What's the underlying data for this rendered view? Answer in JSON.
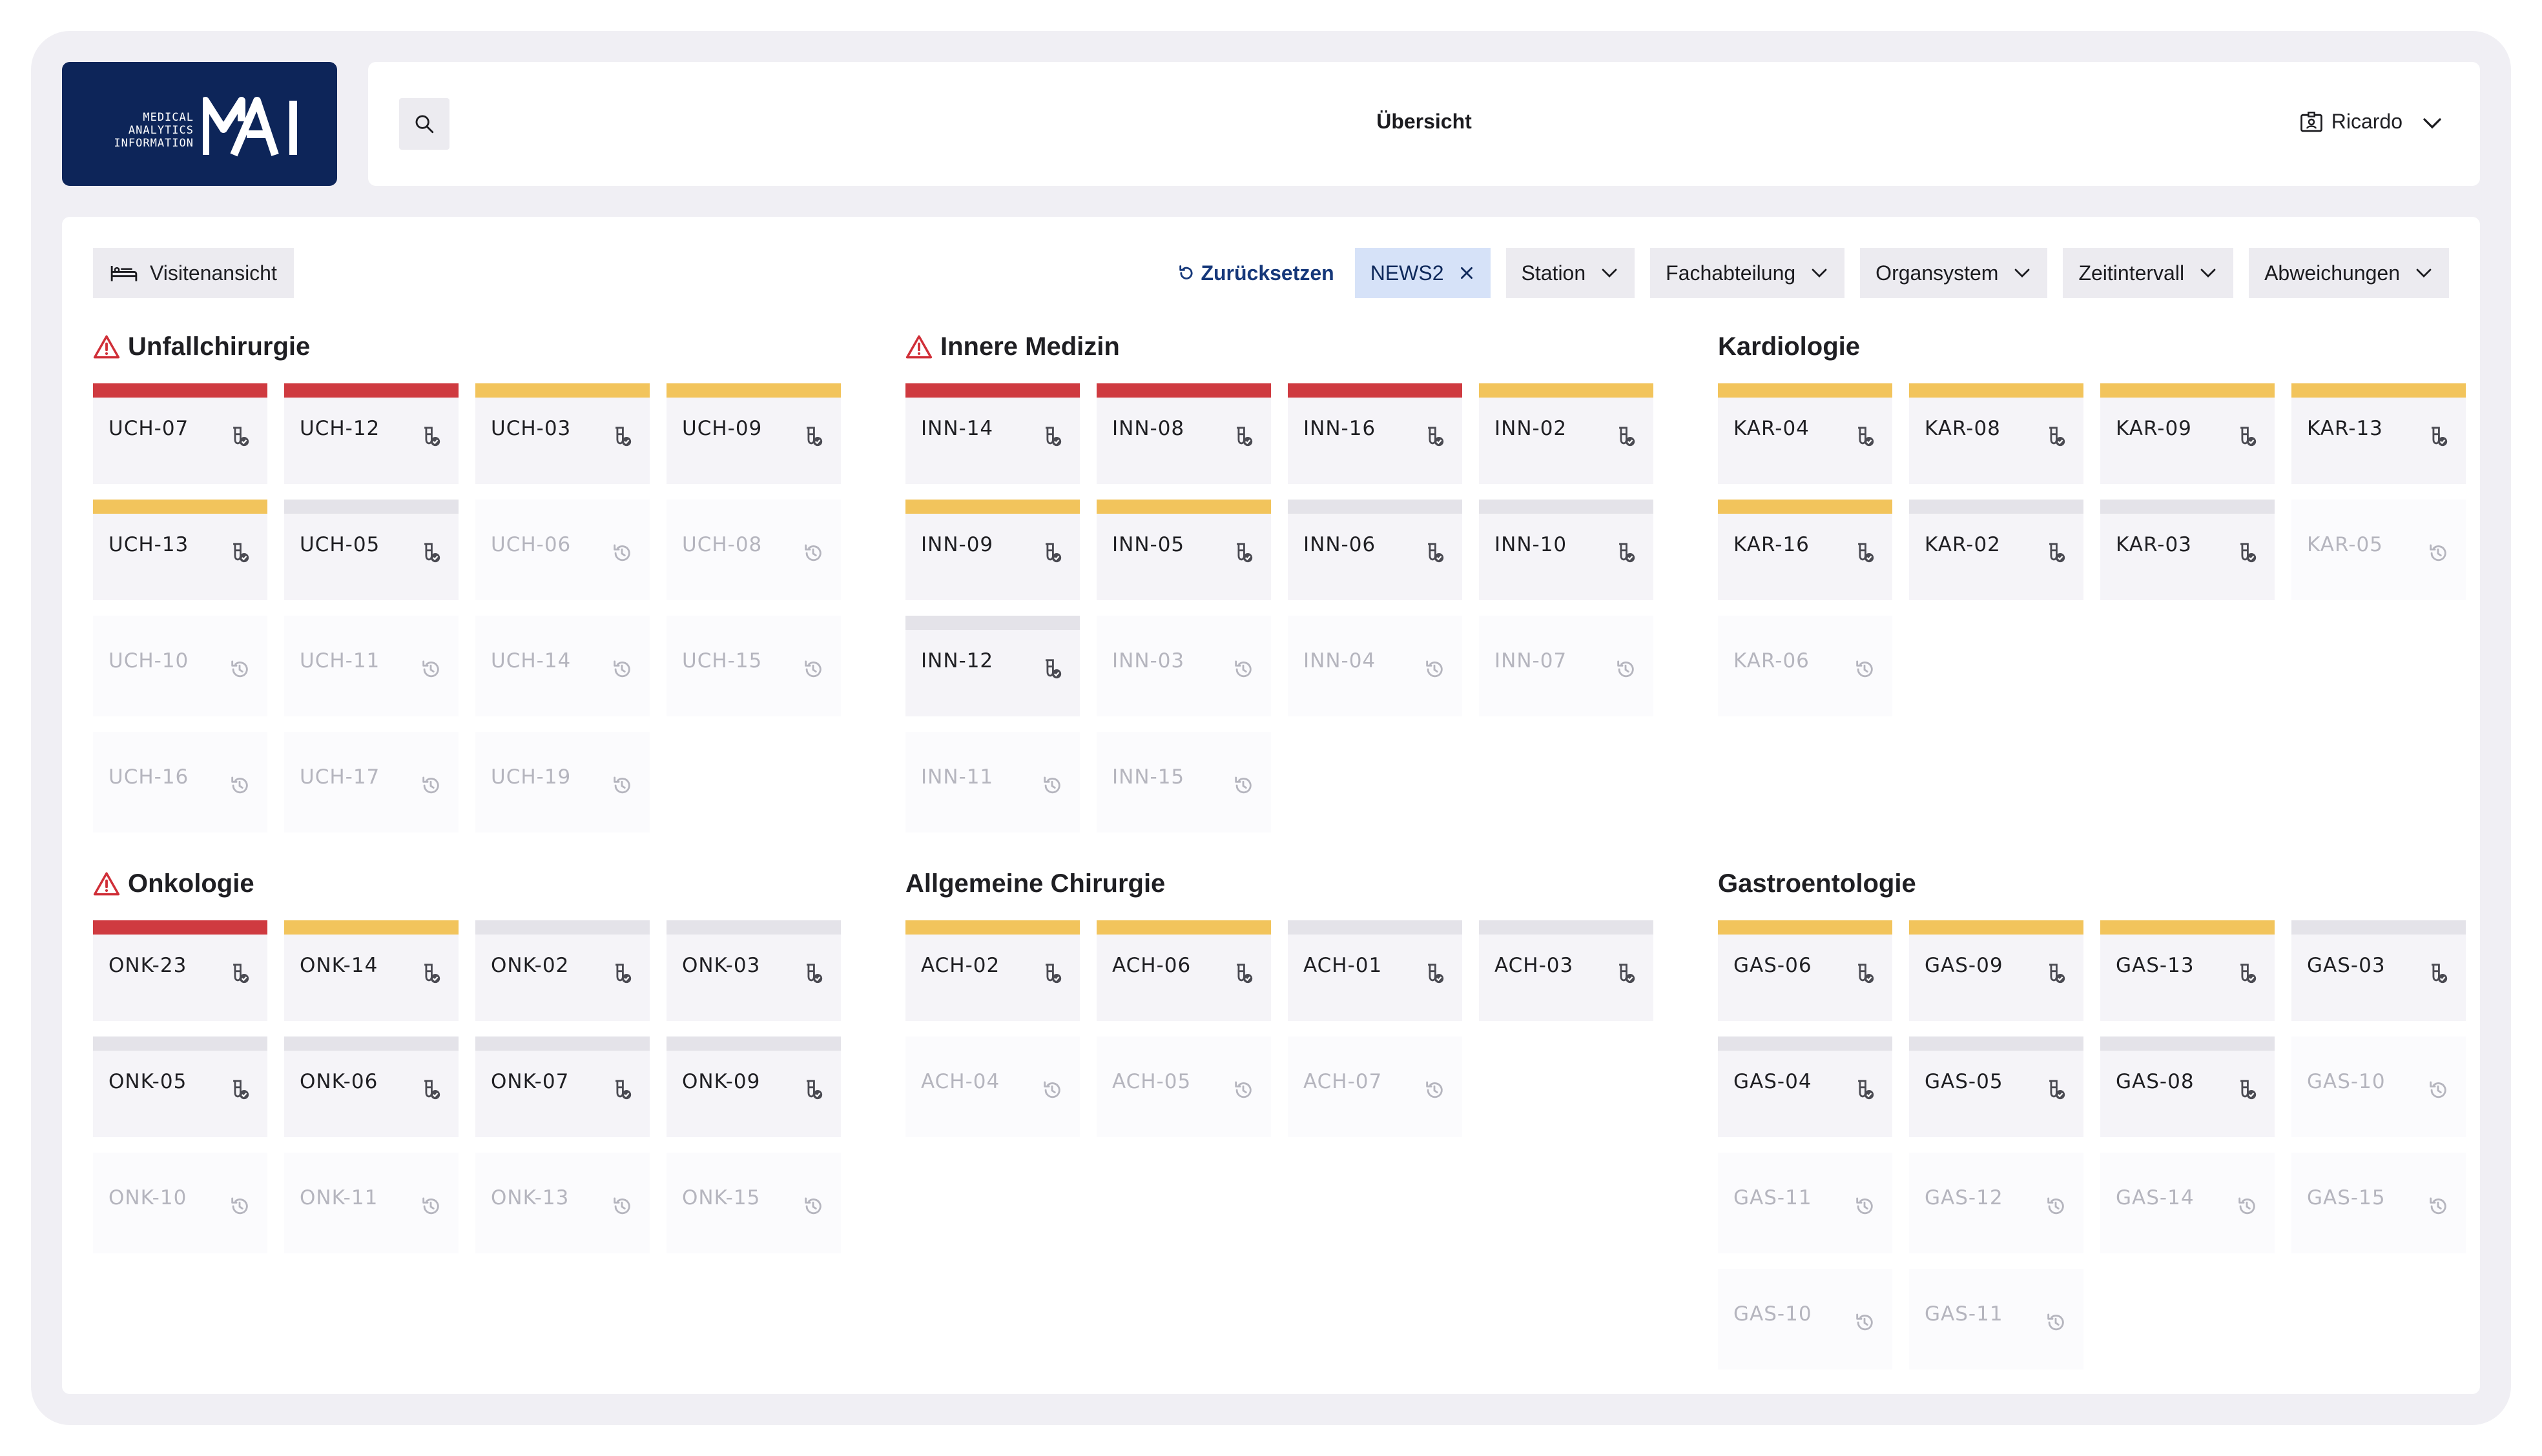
{
  "logo": {
    "line1": "MEDICAL",
    "line2": "ANALYTICS",
    "line3": "INFORMATION"
  },
  "header": {
    "title": "Übersicht",
    "user": "Ricardo"
  },
  "toolbar": {
    "view_button": "Visitenansicht",
    "reset": "Zurücksetzen",
    "active_filter": "NEWS2"
  },
  "filters": [
    "Station",
    "Fachabteilung",
    "Organsystem",
    "Zeitintervall",
    "Abweichungen"
  ],
  "colors": {
    "red": "#cf3a40",
    "yellow": "#f2c45c",
    "gray": "#e4e3e9",
    "brand": "#0d2559"
  },
  "groups": [
    {
      "title": "Unfallchirurgie",
      "warning": true,
      "tiles": [
        {
          "id": "UCH-07",
          "status": "red",
          "active": true
        },
        {
          "id": "UCH-12",
          "status": "red",
          "active": true
        },
        {
          "id": "UCH-03",
          "status": "yellow",
          "active": true
        },
        {
          "id": "UCH-09",
          "status": "yellow",
          "active": true
        },
        {
          "id": "UCH-13",
          "status": "yellow",
          "active": true
        },
        {
          "id": "UCH-05",
          "status": "gray",
          "active": true
        },
        {
          "id": "UCH-06",
          "status": "none",
          "active": false
        },
        {
          "id": "UCH-08",
          "status": "none",
          "active": false
        },
        {
          "id": "UCH-10",
          "status": "none",
          "active": false
        },
        {
          "id": "UCH-11",
          "status": "none",
          "active": false
        },
        {
          "id": "UCH-14",
          "status": "none",
          "active": false
        },
        {
          "id": "UCH-15",
          "status": "none",
          "active": false
        },
        {
          "id": "UCH-16",
          "status": "none",
          "active": false
        },
        {
          "id": "UCH-17",
          "status": "none",
          "active": false
        },
        {
          "id": "UCH-19",
          "status": "none",
          "active": false
        }
      ]
    },
    {
      "title": "Innere Medizin",
      "warning": true,
      "tiles": [
        {
          "id": "INN-14",
          "status": "red",
          "active": true
        },
        {
          "id": "INN-08",
          "status": "red",
          "active": true
        },
        {
          "id": "INN-16",
          "status": "red",
          "active": true
        },
        {
          "id": "INN-02",
          "status": "yellow",
          "active": true
        },
        {
          "id": "INN-09",
          "status": "yellow",
          "active": true
        },
        {
          "id": "INN-05",
          "status": "yellow",
          "active": true
        },
        {
          "id": "INN-06",
          "status": "gray",
          "active": true
        },
        {
          "id": "INN-10",
          "status": "gray",
          "active": true
        },
        {
          "id": "INN-12",
          "status": "gray",
          "active": true
        },
        {
          "id": "INN-03",
          "status": "none",
          "active": false
        },
        {
          "id": "INN-04",
          "status": "none",
          "active": false
        },
        {
          "id": "INN-07",
          "status": "none",
          "active": false
        },
        {
          "id": "INN-11",
          "status": "none",
          "active": false
        },
        {
          "id": "INN-15",
          "status": "none",
          "active": false
        }
      ]
    },
    {
      "title": "Kardiologie",
      "warning": false,
      "tiles": [
        {
          "id": "KAR-04",
          "status": "yellow",
          "active": true
        },
        {
          "id": "KAR-08",
          "status": "yellow",
          "active": true
        },
        {
          "id": "KAR-09",
          "status": "yellow",
          "active": true
        },
        {
          "id": "KAR-13",
          "status": "yellow",
          "active": true
        },
        {
          "id": "KAR-16",
          "status": "yellow",
          "active": true
        },
        {
          "id": "KAR-02",
          "status": "gray",
          "active": true
        },
        {
          "id": "KAR-03",
          "status": "gray",
          "active": true
        },
        {
          "id": "KAR-05",
          "status": "none",
          "active": false
        },
        {
          "id": "KAR-06",
          "status": "none",
          "active": false
        }
      ]
    },
    {
      "title": "Onkologie",
      "warning": true,
      "tiles": [
        {
          "id": "ONK-23",
          "status": "red",
          "active": true
        },
        {
          "id": "ONK-14",
          "status": "yellow",
          "active": true
        },
        {
          "id": "ONK-02",
          "status": "gray",
          "active": true
        },
        {
          "id": "ONK-03",
          "status": "gray",
          "active": true
        },
        {
          "id": "ONK-05",
          "status": "gray",
          "active": true
        },
        {
          "id": "ONK-06",
          "status": "gray",
          "active": true
        },
        {
          "id": "ONK-07",
          "status": "gray",
          "active": true
        },
        {
          "id": "ONK-09",
          "status": "gray",
          "active": true
        },
        {
          "id": "ONK-10",
          "status": "none",
          "active": false
        },
        {
          "id": "ONK-11",
          "status": "none",
          "active": false
        },
        {
          "id": "ONK-13",
          "status": "none",
          "active": false
        },
        {
          "id": "ONK-15",
          "status": "none",
          "active": false
        }
      ]
    },
    {
      "title": "Allgemeine Chirurgie",
      "warning": false,
      "tiles": [
        {
          "id": "ACH-02",
          "status": "yellow",
          "active": true
        },
        {
          "id": "ACH-06",
          "status": "yellow",
          "active": true
        },
        {
          "id": "ACH-01",
          "status": "gray",
          "active": true
        },
        {
          "id": "ACH-03",
          "status": "gray",
          "active": true
        },
        {
          "id": "ACH-04",
          "status": "none",
          "active": false
        },
        {
          "id": "ACH-05",
          "status": "none",
          "active": false
        },
        {
          "id": "ACH-07",
          "status": "none",
          "active": false
        }
      ]
    },
    {
      "title": "Gastroentologie",
      "warning": false,
      "tiles": [
        {
          "id": "GAS-06",
          "status": "yellow",
          "active": true
        },
        {
          "id": "GAS-09",
          "status": "yellow",
          "active": true
        },
        {
          "id": "GAS-13",
          "status": "yellow",
          "active": true
        },
        {
          "id": "GAS-03",
          "status": "gray",
          "active": true
        },
        {
          "id": "GAS-04",
          "status": "gray",
          "active": true
        },
        {
          "id": "GAS-05",
          "status": "gray",
          "active": true
        },
        {
          "id": "GAS-08",
          "status": "gray",
          "active": true
        },
        {
          "id": "GAS-10",
          "status": "none",
          "active": false
        },
        {
          "id": "GAS-11",
          "status": "none",
          "active": false
        },
        {
          "id": "GAS-12",
          "status": "none",
          "active": false
        },
        {
          "id": "GAS-14",
          "status": "none",
          "active": false
        },
        {
          "id": "GAS-15",
          "status": "none",
          "active": false
        },
        {
          "id": "GAS-10",
          "status": "none",
          "active": false
        },
        {
          "id": "GAS-11",
          "status": "none",
          "active": false
        }
      ]
    }
  ]
}
